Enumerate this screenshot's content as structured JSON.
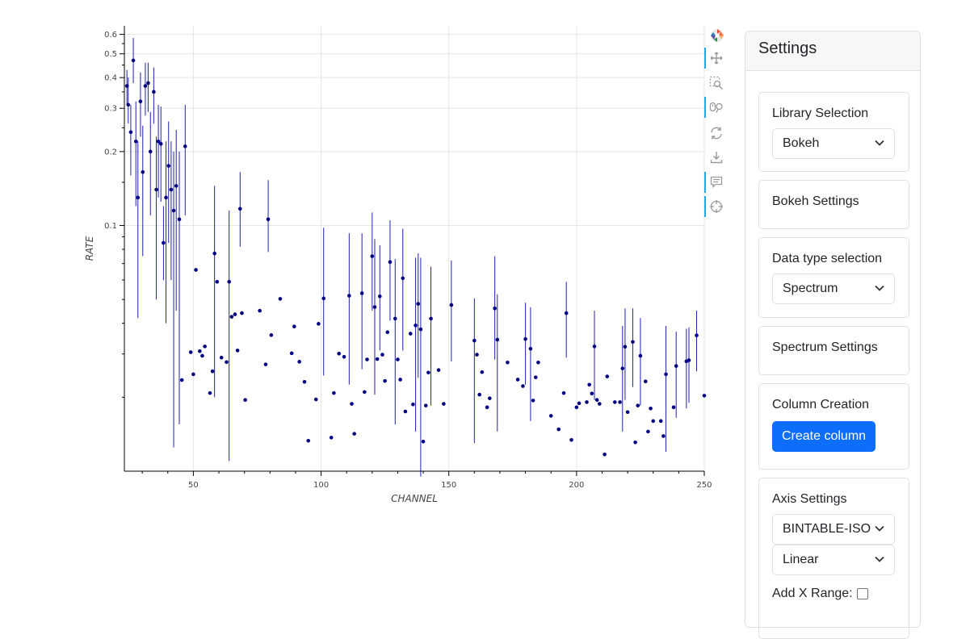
{
  "chart_data": {
    "type": "scatter",
    "xlabel": "CHANNEL",
    "ylabel": "RATE",
    "xlim": [
      23,
      250
    ],
    "ylim": [
      0.01,
      0.65
    ],
    "y_scale": "log",
    "grid": true,
    "x_ticks": [
      50,
      100,
      150,
      200,
      250
    ],
    "y_ticks": [
      0.1,
      0.2,
      0.3,
      0.4,
      0.5,
      0.6
    ],
    "point_color": "#000080",
    "errorbar_color": "#2020b0",
    "series": [
      {
        "points": [
          {
            "x": 24,
            "y": 0.37,
            "lo": 0.31,
            "hi": 0.43
          },
          {
            "x": 24.5,
            "y": 0.31,
            "lo": 0.26,
            "hi": 0.4
          },
          {
            "x": 25.5,
            "y": 0.24,
            "lo": 0.16,
            "hi": 0.31
          },
          {
            "x": 26.5,
            "y": 0.47,
            "lo": 0.38,
            "hi": 0.58
          },
          {
            "x": 27.5,
            "y": 0.22,
            "lo": 0.12,
            "hi": 0.32
          },
          {
            "x": 28.3,
            "y": 0.13,
            "lo": 0.042,
            "hi": 0.22
          },
          {
            "x": 29.3,
            "y": 0.32,
            "lo": 0.23,
            "hi": 0.42
          },
          {
            "x": 30.2,
            "y": 0.165,
            "lo": 0.075,
            "hi": 0.255
          },
          {
            "x": 31.2,
            "y": 0.37,
            "lo": 0.28,
            "hi": 0.46
          },
          {
            "x": 32.3,
            "y": 0.38,
            "lo": 0.29,
            "hi": 0.46
          },
          {
            "x": 33.2,
            "y": 0.2,
            "lo": 0.11,
            "hi": 0.29
          },
          {
            "x": 34.5,
            "y": 0.35,
            "lo": 0.26,
            "hi": 0.44
          },
          {
            "x": 35.5,
            "y": 0.14,
            "lo": 0.05,
            "hi": 0.23
          },
          {
            "x": 36.3,
            "y": 0.22,
            "lo": 0.13,
            "hi": 0.31
          },
          {
            "x": 37.3,
            "y": 0.215,
            "lo": 0.125,
            "hi": 0.305
          },
          {
            "x": 38.3,
            "y": 0.085,
            "lo": 0.06,
            "hi": 0.12
          },
          {
            "x": 39.3,
            "y": 0.13,
            "lo": 0.04,
            "hi": 0.22
          },
          {
            "x": 40.3,
            "y": 0.175,
            "lo": 0.085,
            "hi": 0.265
          },
          {
            "x": 41.3,
            "y": 0.14,
            "lo": 0.06,
            "hi": 0.22
          },
          {
            "x": 42.3,
            "y": 0.115,
            "lo": 0.0125,
            "hi": 0.2
          },
          {
            "x": 43.3,
            "y": 0.145,
            "lo": 0.045,
            "hi": 0.245
          },
          {
            "x": 44.5,
            "y": 0.106,
            "lo": 0.0155,
            "hi": 0.2
          },
          {
            "x": 45.5,
            "y": 0.0235
          },
          {
            "x": 46.8,
            "y": 0.21,
            "lo": 0.11,
            "hi": 0.31
          },
          {
            "x": 49,
            "y": 0.0305
          },
          {
            "x": 50,
            "y": 0.0248
          },
          {
            "x": 51,
            "y": 0.066
          },
          {
            "x": 52.5,
            "y": 0.0308
          },
          {
            "x": 53.5,
            "y": 0.0295
          },
          {
            "x": 54.5,
            "y": 0.0322
          },
          {
            "x": 56.5,
            "y": 0.0208
          },
          {
            "x": 57.5,
            "y": 0.0255
          },
          {
            "x": 58.3,
            "y": 0.077,
            "lo": 0.02,
            "hi": 0.145
          },
          {
            "x": 59.3,
            "y": 0.059
          },
          {
            "x": 61,
            "y": 0.029
          },
          {
            "x": 63,
            "y": 0.0278
          },
          {
            "x": 64,
            "y": 0.059,
            "lo": 0.011,
            "hi": 0.115
          },
          {
            "x": 65,
            "y": 0.0425
          },
          {
            "x": 66.3,
            "y": 0.0435
          },
          {
            "x": 67.3,
            "y": 0.031
          },
          {
            "x": 68.3,
            "y": 0.117,
            "lo": 0.082,
            "hi": 0.165
          },
          {
            "x": 69,
            "y": 0.044
          },
          {
            "x": 70.3,
            "y": 0.0195
          },
          {
            "x": 76,
            "y": 0.045
          },
          {
            "x": 78.3,
            "y": 0.0272
          },
          {
            "x": 79.3,
            "y": 0.106,
            "lo": 0.078,
            "hi": 0.153
          },
          {
            "x": 80.5,
            "y": 0.0358
          },
          {
            "x": 84,
            "y": 0.0503
          },
          {
            "x": 88.5,
            "y": 0.0302
          },
          {
            "x": 89.5,
            "y": 0.0388
          },
          {
            "x": 91.5,
            "y": 0.0279
          },
          {
            "x": 93.5,
            "y": 0.0231
          },
          {
            "x": 95,
            "y": 0.0133
          },
          {
            "x": 98,
            "y": 0.0196
          },
          {
            "x": 99,
            "y": 0.0398
          },
          {
            "x": 101,
            "y": 0.0505,
            "lo": 0.0245,
            "hi": 0.098
          },
          {
            "x": 104,
            "y": 0.0137
          },
          {
            "x": 105,
            "y": 0.0208
          },
          {
            "x": 107,
            "y": 0.0301
          },
          {
            "x": 109,
            "y": 0.0292
          },
          {
            "x": 111,
            "y": 0.0518,
            "lo": 0.0225,
            "hi": 0.093
          },
          {
            "x": 112,
            "y": 0.0188
          },
          {
            "x": 113,
            "y": 0.0142
          },
          {
            "x": 116,
            "y": 0.053,
            "lo": 0.026,
            "hi": 0.093
          },
          {
            "x": 117,
            "y": 0.021
          },
          {
            "x": 118,
            "y": 0.0285
          },
          {
            "x": 120,
            "y": 0.075,
            "lo": 0.045,
            "hi": 0.113
          },
          {
            "x": 121,
            "y": 0.0466,
            "lo": 0.0205,
            "hi": 0.088
          },
          {
            "x": 122,
            "y": 0.0286
          },
          {
            "x": 123,
            "y": 0.0515,
            "lo": 0.031,
            "hi": 0.083
          },
          {
            "x": 124,
            "y": 0.0298
          },
          {
            "x": 125,
            "y": 0.0233
          },
          {
            "x": 126,
            "y": 0.0368
          },
          {
            "x": 127,
            "y": 0.071,
            "lo": 0.041,
            "hi": 0.105
          },
          {
            "x": 129,
            "y": 0.0418,
            "lo": 0.0155,
            "hi": 0.073
          },
          {
            "x": 130,
            "y": 0.0285
          },
          {
            "x": 131,
            "y": 0.0236
          },
          {
            "x": 132,
            "y": 0.061,
            "lo": 0.031,
            "hi": 0.097
          },
          {
            "x": 133,
            "y": 0.0175
          },
          {
            "x": 135,
            "y": 0.0363
          },
          {
            "x": 136,
            "y": 0.0187
          },
          {
            "x": 137,
            "y": 0.0392,
            "lo": 0.0145,
            "hi": 0.074
          },
          {
            "x": 138,
            "y": 0.048,
            "lo": 0.024,
            "hi": 0.077
          },
          {
            "x": 139,
            "y": 0.0378,
            "lo": 0.0095,
            "hi": 0.074
          },
          {
            "x": 140,
            "y": 0.0132
          },
          {
            "x": 141,
            "y": 0.0185
          },
          {
            "x": 142,
            "y": 0.0252
          },
          {
            "x": 143,
            "y": 0.0418,
            "lo": 0.0185,
            "hi": 0.068
          },
          {
            "x": 146,
            "y": 0.0258
          },
          {
            "x": 148,
            "y": 0.0188
          },
          {
            "x": 151,
            "y": 0.0475,
            "lo": 0.028,
            "hi": 0.072
          },
          {
            "x": 160,
            "y": 0.034,
            "lo": 0.013,
            "hi": 0.0505
          },
          {
            "x": 161,
            "y": 0.0298
          },
          {
            "x": 162,
            "y": 0.0205
          },
          {
            "x": 163,
            "y": 0.0253
          },
          {
            "x": 165,
            "y": 0.0182
          },
          {
            "x": 166,
            "y": 0.0198
          },
          {
            "x": 168,
            "y": 0.046,
            "lo": 0.0285,
            "hi": 0.075
          },
          {
            "x": 169,
            "y": 0.0343,
            "lo": 0.0145,
            "hi": 0.0525
          },
          {
            "x": 173,
            "y": 0.0277
          },
          {
            "x": 177,
            "y": 0.0236
          },
          {
            "x": 179,
            "y": 0.0222
          },
          {
            "x": 180,
            "y": 0.0345,
            "lo": 0.0225,
            "hi": 0.0485
          },
          {
            "x": 182,
            "y": 0.0315,
            "lo": 0.016,
            "hi": 0.0465
          },
          {
            "x": 183,
            "y": 0.0194
          },
          {
            "x": 184,
            "y": 0.0241
          },
          {
            "x": 185,
            "y": 0.0277
          },
          {
            "x": 190,
            "y": 0.0168
          },
          {
            "x": 193,
            "y": 0.0148
          },
          {
            "x": 195,
            "y": 0.0208
          },
          {
            "x": 196,
            "y": 0.044,
            "lo": 0.029,
            "hi": 0.059
          },
          {
            "x": 198,
            "y": 0.0134
          },
          {
            "x": 200,
            "y": 0.0182
          },
          {
            "x": 201,
            "y": 0.0189
          },
          {
            "x": 204,
            "y": 0.0191
          },
          {
            "x": 205,
            "y": 0.0225
          },
          {
            "x": 206,
            "y": 0.0207
          },
          {
            "x": 207,
            "y": 0.0322,
            "lo": 0.0195,
            "hi": 0.045
          },
          {
            "x": 208,
            "y": 0.0195
          },
          {
            "x": 209,
            "y": 0.0188
          },
          {
            "x": 211,
            "y": 0.0117
          },
          {
            "x": 212,
            "y": 0.0243
          },
          {
            "x": 215,
            "y": 0.0191
          },
          {
            "x": 217,
            "y": 0.0191
          },
          {
            "x": 218,
            "y": 0.0262,
            "lo": 0.0145,
            "hi": 0.039
          },
          {
            "x": 219,
            "y": 0.0321,
            "lo": 0.0195,
            "hi": 0.046
          },
          {
            "x": 220,
            "y": 0.0174
          },
          {
            "x": 222,
            "y": 0.0336,
            "lo": 0.022,
            "hi": 0.046
          },
          {
            "x": 223,
            "y": 0.0131
          },
          {
            "x": 224,
            "y": 0.0185
          },
          {
            "x": 225,
            "y": 0.0295,
            "lo": 0.0185,
            "hi": 0.042
          },
          {
            "x": 227,
            "y": 0.0232
          },
          {
            "x": 228,
            "y": 0.0145
          },
          {
            "x": 229,
            "y": 0.018
          },
          {
            "x": 230,
            "y": 0.016
          },
          {
            "x": 233,
            "y": 0.016
          },
          {
            "x": 234,
            "y": 0.0139
          },
          {
            "x": 235,
            "y": 0.0248,
            "lo": 0.012,
            "hi": 0.039
          },
          {
            "x": 238,
            "y": 0.0182
          },
          {
            "x": 239,
            "y": 0.0268,
            "lo": 0.0165,
            "hi": 0.037
          },
          {
            "x": 243,
            "y": 0.028,
            "lo": 0.018,
            "hi": 0.038
          },
          {
            "x": 244,
            "y": 0.0283,
            "lo": 0.019,
            "hi": 0.0385
          },
          {
            "x": 247,
            "y": 0.0357,
            "lo": 0.0255,
            "hi": 0.045
          },
          {
            "x": 250,
            "y": 0.0203
          }
        ]
      }
    ]
  },
  "toolbar": {
    "tools": [
      {
        "name": "bokeh-logo",
        "icon": "bokeh-logo-icon",
        "active": false
      },
      {
        "name": "pan-tool",
        "icon": "pan-icon",
        "active": true
      },
      {
        "name": "box-zoom-tool",
        "icon": "box-zoom-icon",
        "active": false
      },
      {
        "name": "wheel-zoom-tool",
        "icon": "wheel-zoom-icon",
        "active": true
      },
      {
        "name": "reset-tool",
        "icon": "reset-icon",
        "active": false
      },
      {
        "name": "save-tool",
        "icon": "save-icon",
        "active": false
      },
      {
        "name": "hover-tool",
        "icon": "hover-icon",
        "active": true
      },
      {
        "name": "crosshair-tool",
        "icon": "crosshair-icon",
        "active": true
      }
    ]
  },
  "settings": {
    "title": "Settings",
    "library": {
      "title": "Library Selection",
      "selected": "Bokeh"
    },
    "bokeh": {
      "title": "Bokeh Settings"
    },
    "datatype": {
      "title": "Data type selection",
      "selected": "Spectrum"
    },
    "spectrum": {
      "title": "Spectrum Settings"
    },
    "column": {
      "title": "Column Creation",
      "button": "Create column"
    },
    "axis": {
      "title": "Axis Settings",
      "column_selected": "BINTABLE-ISO",
      "scale_selected": "Linear",
      "x_range_label": "Add X Range:"
    }
  }
}
